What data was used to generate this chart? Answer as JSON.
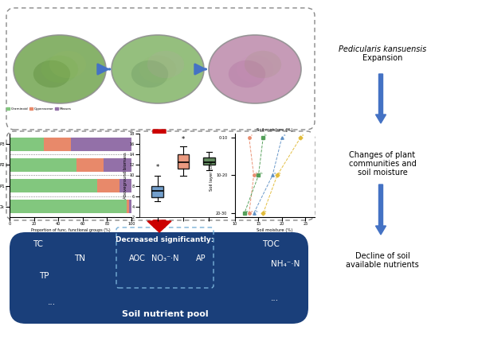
{
  "bg_color": "#ffffff",
  "dashed_border_color": "#888888",
  "blue_arrow_color": "#4472C4",
  "red_arrow_color": "#CC0000",
  "soil_box_color": "#1a3f7a",
  "soil_box_text_color": "#ffffff",
  "soil_box_center_title": "Decreased significantly:",
  "soil_box_center_items": [
    "AOC",
    "NO₃⁻·N",
    "AP"
  ],
  "soil_box_bottom": "Soil nutrient pool",
  "bar_colors": [
    "#82c77e",
    "#e8896a",
    "#9370a8"
  ],
  "bar_legend": [
    "Graminoid",
    "Cyperaceae",
    "Mosses"
  ],
  "boxplot_colors": [
    "#5b8ec4",
    "#e8896a",
    "#4a7a46"
  ],
  "oval_colors": [
    "#7aaa5a",
    "#8ab870",
    "#c090b0"
  ],
  "right_label1_line1": "Pedicularis kansuensis",
  "right_label1_line2": "Expansion",
  "right_label2": "Changes of plant\ncommunities and\nsoil moisture",
  "right_label3": "Decline of soil\navailable nutrients"
}
